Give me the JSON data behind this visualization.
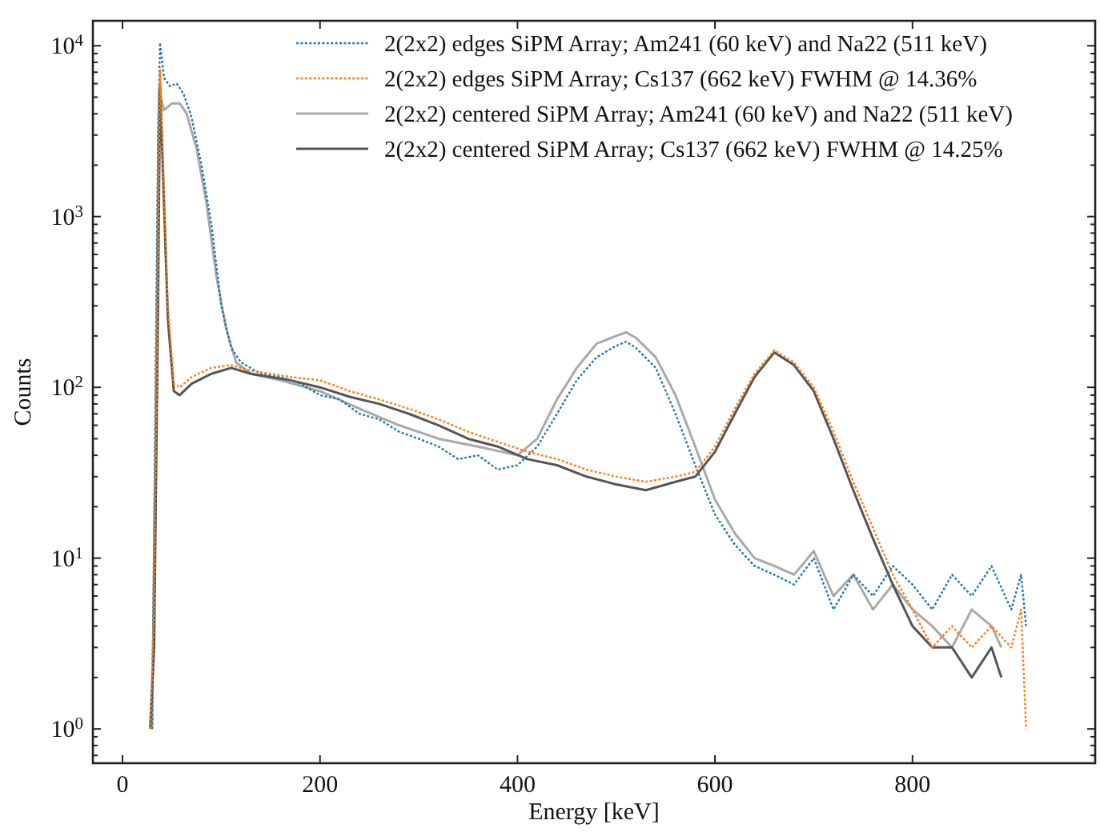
{
  "chart_data": {
    "type": "line",
    "xlabel": "Energy [keV]",
    "ylabel": "Counts",
    "log": "y",
    "legend": "top right",
    "grid": false,
    "xlim": [
      -30,
      985
    ],
    "xticks": [
      0,
      200,
      400,
      600,
      800
    ],
    "ylim": [
      0.63,
      14000
    ],
    "yticks": [
      {
        "value": 0.7,
        "label": null
      },
      {
        "value": 0.8,
        "label": null
      },
      {
        "value": 0.9,
        "label": null
      },
      {
        "value": 1,
        "label": "10$^{0}$"
      },
      {
        "value": 2,
        "label": null
      },
      {
        "value": 3,
        "label": null
      },
      {
        "value": 4,
        "label": null
      },
      {
        "value": 5,
        "label": null
      },
      {
        "value": 6,
        "label": null
      },
      {
        "value": 7,
        "label": null
      },
      {
        "value": 8,
        "label": null
      },
      {
        "value": 9,
        "label": null
      },
      {
        "value": 10,
        "label": "10$^{1}$"
      },
      {
        "value": 20,
        "label": null
      },
      {
        "value": 30,
        "label": null
      },
      {
        "value": 40,
        "label": null
      },
      {
        "value": 50,
        "label": null
      },
      {
        "value": 60,
        "label": null
      },
      {
        "value": 70,
        "label": null
      },
      {
        "value": 80,
        "label": null
      },
      {
        "value": 90,
        "label": null
      },
      {
        "value": 100,
        "label": "10$^{2}$"
      },
      {
        "value": 200,
        "label": null
      },
      {
        "value": 300,
        "label": null
      },
      {
        "value": 400,
        "label": null
      },
      {
        "value": 500,
        "label": null
      },
      {
        "value": 600,
        "label": null
      },
      {
        "value": 700,
        "label": null
      },
      {
        "value": 800,
        "label": null
      },
      {
        "value": 900,
        "label": null
      },
      {
        "value": 1000,
        "label": "10$^{3}$"
      },
      {
        "value": 2000,
        "label": null
      },
      {
        "value": 3000,
        "label": null
      },
      {
        "value": 4000,
        "label": null
      },
      {
        "value": 5000,
        "label": null
      },
      {
        "value": 6000,
        "label": null
      },
      {
        "value": 7000,
        "label": null
      },
      {
        "value": 8000,
        "label": null
      },
      {
        "value": 9000,
        "label": null
      },
      {
        "value": 10000,
        "label": "10$^{4}$"
      }
    ],
    "series": [
      {
        "name": "2(2x2) edges SiPM Array; Am241 (60 keV) and Na22 (511 keV)",
        "color": "#1f77b4",
        "line_style": "dotted",
        "x": [
          30,
          33,
          36,
          38,
          42,
          48,
          55,
          62,
          70,
          80,
          90,
          100,
          110,
          120,
          140,
          160,
          180,
          200,
          220,
          240,
          260,
          280,
          300,
          320,
          340,
          360,
          380,
          400,
          420,
          440,
          460,
          480,
          500,
          510,
          520,
          540,
          560,
          580,
          600,
          620,
          640,
          660,
          680,
          700,
          720,
          740,
          760,
          780,
          800,
          820,
          840,
          860,
          880,
          900,
          910,
          915
        ],
        "values": [
          1,
          50,
          3000,
          10400,
          6500,
          5800,
          6000,
          5200,
          3800,
          2000,
          900,
          300,
          170,
          140,
          120,
          115,
          105,
          90,
          85,
          70,
          65,
          55,
          50,
          45,
          38,
          40,
          33,
          35,
          45,
          70,
          110,
          150,
          175,
          185,
          170,
          130,
          70,
          35,
          18,
          12,
          9,
          8,
          7,
          10,
          5,
          8,
          6,
          9,
          7,
          5,
          8,
          6,
          9,
          5,
          8,
          4
        ]
      },
      {
        "name": "2(2x2) edges SiPM Array; Cs137 (662 keV) FWHM @ 14.36%",
        "color": "#ff7f0e",
        "line_style": "dotted",
        "x": [
          28,
          32,
          36,
          38,
          42,
          46,
          52,
          58,
          70,
          90,
          110,
          130,
          150,
          170,
          200,
          230,
          260,
          290,
          320,
          350,
          380,
          410,
          440,
          470,
          500,
          530,
          560,
          580,
          600,
          620,
          640,
          660,
          680,
          700,
          720,
          740,
          760,
          780,
          800,
          820,
          840,
          860,
          880,
          900,
          910,
          915
        ],
        "values": [
          1,
          5,
          500,
          7200,
          1500,
          300,
          105,
          100,
          115,
          130,
          135,
          125,
          120,
          115,
          110,
          95,
          85,
          75,
          65,
          55,
          48,
          42,
          38,
          33,
          30,
          28,
          30,
          32,
          45,
          75,
          120,
          165,
          140,
          100,
          55,
          28,
          15,
          8,
          5,
          3,
          4,
          3,
          4,
          3,
          5,
          1
        ]
      },
      {
        "name": "2(2x2) centered SiPM Array; Am241 (60 keV) and Na22 (511 keV)",
        "color": "#a9a9a9",
        "line_style": "solid",
        "x": [
          30,
          34,
          37,
          42,
          50,
          58,
          65,
          75,
          85,
          95,
          105,
          115,
          130,
          160,
          200,
          240,
          280,
          320,
          360,
          400,
          420,
          440,
          460,
          480,
          500,
          510,
          520,
          540,
          560,
          580,
          600,
          620,
          640,
          660,
          680,
          700,
          720,
          740,
          760,
          780,
          800,
          820,
          840,
          860,
          880,
          890
        ],
        "values": [
          1,
          100,
          5500,
          4200,
          4600,
          4600,
          4000,
          2500,
          1200,
          450,
          220,
          140,
          120,
          110,
          95,
          75,
          60,
          50,
          45,
          40,
          50,
          85,
          130,
          180,
          200,
          210,
          195,
          150,
          90,
          45,
          22,
          14,
          10,
          9,
          8,
          11,
          6,
          8,
          5,
          7,
          5,
          4,
          3,
          5,
          4,
          3
        ]
      },
      {
        "name": "2(2x2) centered SiPM Array; Cs137 (662 keV) FWHM @ 14.25%",
        "color": "#555555",
        "line_style": "solid",
        "x": [
          28,
          32,
          36,
          38,
          42,
          46,
          52,
          58,
          70,
          90,
          110,
          130,
          150,
          170,
          200,
          230,
          260,
          290,
          320,
          350,
          380,
          410,
          440,
          470,
          500,
          530,
          560,
          580,
          600,
          620,
          640,
          660,
          680,
          700,
          720,
          740,
          760,
          780,
          800,
          820,
          840,
          860,
          880,
          890
        ],
        "values": [
          1,
          3,
          300,
          6000,
          1200,
          250,
          95,
          90,
          105,
          120,
          130,
          120,
          115,
          110,
          100,
          88,
          80,
          70,
          60,
          50,
          45,
          38,
          35,
          30,
          27,
          25,
          28,
          30,
          42,
          70,
          115,
          160,
          135,
          95,
          50,
          25,
          13,
          7,
          4,
          3,
          3,
          2,
          3,
          2
        ]
      }
    ]
  }
}
